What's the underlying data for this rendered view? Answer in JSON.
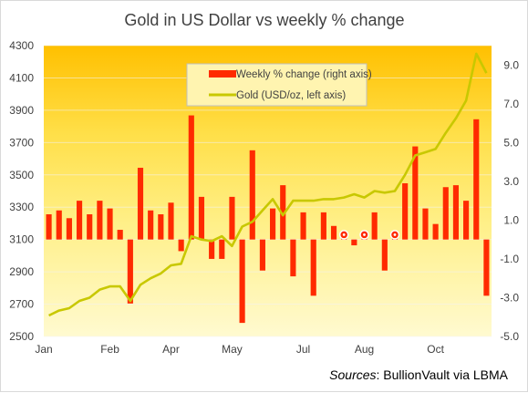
{
  "chart_data": {
    "title": "Gold in US Dollar vs weekly % change",
    "type": "bar+line",
    "x_tick_labels": [
      "Jan",
      "Feb",
      "Apr",
      "May",
      "Jul",
      "Aug",
      "Oct"
    ],
    "left_axis": {
      "range": [
        2500,
        4300
      ],
      "ticks": [
        "2500",
        "2700",
        "2900",
        "3100",
        "3300",
        "3500",
        "3700",
        "3900",
        "4100",
        "4300"
      ]
    },
    "right_axis": {
      "range": [
        -5,
        10
      ],
      "ticks": [
        "-5.0",
        "-3.0",
        "-1.0",
        "1.0",
        "3.0",
        "5.0",
        "7.0",
        "9.0"
      ]
    },
    "legend": {
      "position": "top-center",
      "entries": [
        "Weekly % change (right axis)",
        "Gold (USD/oz, left axis)"
      ]
    },
    "series": [
      {
        "name": "Weekly % change (right axis)",
        "type": "bar",
        "axis": "right",
        "color": "#ff2a00",
        "values": [
          1.3,
          1.5,
          1.1,
          2.0,
          1.3,
          2.0,
          1.6,
          0.5,
          -3.3,
          3.7,
          1.5,
          1.3,
          1.9,
          -0.6,
          6.4,
          2.2,
          -1.0,
          -1.0,
          2.2,
          -4.3,
          4.6,
          -1.6,
          1.6,
          2.8,
          -1.9,
          1.4,
          -2.9,
          1.4,
          0.7,
          0.2,
          -0.3,
          0.2,
          1.4,
          -1.6,
          0.2,
          2.9,
          4.8,
          1.6,
          0.8,
          2.7,
          2.8,
          2.0,
          6.2,
          -2.9
        ],
        "markers": [
          {
            "index": 29,
            "value": 0.2
          },
          {
            "index": 31,
            "value": 0.2
          },
          {
            "index": 34,
            "value": 0.2
          }
        ]
      },
      {
        "name": "Gold (USD/oz, left axis)",
        "type": "line",
        "axis": "left",
        "color": "#c8c800",
        "values": [
          2630,
          2660,
          2675,
          2720,
          2740,
          2790,
          2810,
          2810,
          2720,
          2820,
          2860,
          2890,
          2940,
          2950,
          3120,
          3100,
          3090,
          3120,
          3060,
          3180,
          3210,
          3280,
          3350,
          3250,
          3340,
          3340,
          3340,
          3350,
          3350,
          3360,
          3380,
          3360,
          3400,
          3390,
          3400,
          3500,
          3620,
          3640,
          3660,
          3760,
          3850,
          3960,
          4250,
          4130
        ]
      }
    ],
    "source_label": "Sources",
    "source_text": ": BullionVault via LBMA"
  }
}
